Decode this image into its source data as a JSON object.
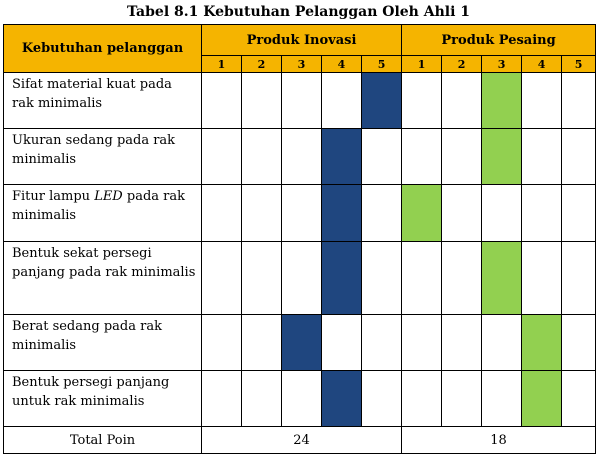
{
  "title": "Tabel 8.1 Kebutuhan Pelanggan Oleh Ahli 1",
  "header": {
    "requirement_col": "Kebutuhan pelanggan",
    "groups": [
      "Produk Inovasi",
      "Produk Pesaing"
    ],
    "scale": [
      "1",
      "2",
      "3",
      "4",
      "5"
    ]
  },
  "rows": [
    {
      "label_pre": "Sifat material kuat pada rak minimalis",
      "label_em": "",
      "label_post": "",
      "inovasi": 5,
      "pesaing": 3
    },
    {
      "label_pre": "Ukuran sedang pada rak minimalis",
      "label_em": "",
      "label_post": "",
      "inovasi": 4,
      "pesaing": 3
    },
    {
      "label_pre": "Fitur lampu ",
      "label_em": "LED",
      "label_post": " pada rak minimalis",
      "inovasi": 4,
      "pesaing": 1
    },
    {
      "label_pre": "Bentuk sekat persegi panjang pada rak minimalis",
      "label_em": "",
      "label_post": "",
      "inovasi": 4,
      "pesaing": 3
    },
    {
      "label_pre": "Berat sedang pada rak minimalis",
      "label_em": "",
      "label_post": "",
      "inovasi": 3,
      "pesaing": 4
    },
    {
      "label_pre": "Bentuk persegi panjang untuk rak minimalis",
      "label_em": "",
      "label_post": "",
      "inovasi": 4,
      "pesaing": 4
    }
  ],
  "total": {
    "label": "Total Poin",
    "inovasi": "24",
    "pesaing": "18"
  },
  "colors": {
    "header": "#f5b400",
    "inovasi": "#1f467f",
    "pesaing": "#92d050"
  }
}
